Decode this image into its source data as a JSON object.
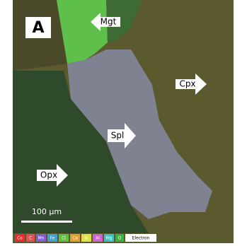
{
  "panel_label": "A",
  "phase_labels": [
    "Mgt",
    "Cpx",
    "Spl",
    "Opx"
  ],
  "scale_bar": "100 µm",
  "legend": [
    "Co",
    "C",
    "Mn",
    "Fe",
    "Cl",
    "Ca",
    "Si",
    "Al",
    "Mg",
    "O",
    "Electron"
  ]
}
